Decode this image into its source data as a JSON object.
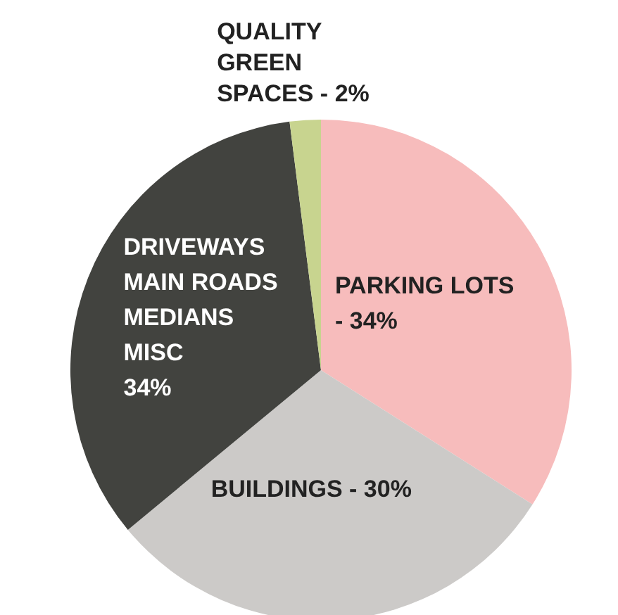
{
  "chart_data": {
    "type": "pie",
    "categories": [
      "PARKING LOTS\n- 34%",
      "BUILDINGS - 30%",
      "DRIVEWAYS\nMAIN ROADS\nMEDIANS\nMISC\n34%",
      "QUALITY\nGREEN\nSPACES - 2%"
    ],
    "values": [
      34,
      30,
      34,
      2
    ],
    "colors": [
      "#f7bcbc",
      "#cccac8",
      "#42433f",
      "#c8d48f"
    ]
  }
}
